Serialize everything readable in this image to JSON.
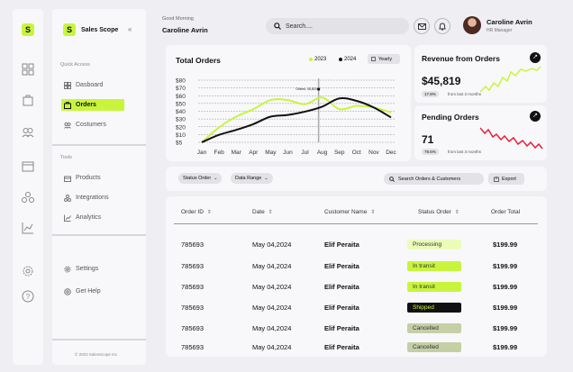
{
  "brand": {
    "logo_letter": "S",
    "name": "Sales Scope",
    "collapse_icon": "double-chevron-left-icon"
  },
  "nav": {
    "quick_access_title": "Quick Access",
    "quick_access": [
      {
        "label": "Dasboard",
        "icon": "dashboard-icon"
      },
      {
        "label": "Orders",
        "icon": "orders-icon",
        "active": true
      },
      {
        "label": "Costumers",
        "icon": "customers-icon"
      }
    ],
    "tools_title": "Tools",
    "tools": [
      {
        "label": "Products",
        "icon": "products-icon"
      },
      {
        "label": "Integrations",
        "icon": "integrations-icon"
      },
      {
        "label": "Analytics",
        "icon": "analytics-icon"
      }
    ],
    "bottom": [
      {
        "label": "Settings",
        "icon": "settings-icon"
      },
      {
        "label": "Get Help",
        "icon": "help-icon"
      }
    ],
    "copyright": "© 2023 SalesScope Inc"
  },
  "rail_icons": [
    "dashboard-icon",
    "bag-icon",
    "users-icon",
    "image-icon",
    "integration-icon",
    "chart-icon",
    "settings-icon",
    "help-icon"
  ],
  "header": {
    "greeting": "Good Morning",
    "user_name": "Caroline Avrin",
    "search_placeholder": "Search....",
    "mail_icon": "mail-icon",
    "bell_icon": "bell-icon",
    "profile_name": "Caroline Avrin",
    "profile_role": "HR Manager"
  },
  "total_orders": {
    "title": "Total Orders",
    "period": "Yearly",
    "tooltip": "Orders: 45,819"
  },
  "chart_data": {
    "type": "line",
    "title": "Total Orders",
    "categories": [
      "Jan",
      "Feb",
      "Mar",
      "Apr",
      "May",
      "Jun",
      "Jul",
      "Aug",
      "Sep",
      "Oct",
      "Nov",
      "Dec"
    ],
    "yticks": [
      "$80",
      "$70",
      "$60",
      "$50",
      "$40",
      "$30",
      "$20",
      "$10",
      "$5"
    ],
    "ylim": [
      5,
      80
    ],
    "grid": true,
    "legend_position": "top-right",
    "colors": {
      "2023": "#c8f53c",
      "2024": "#111111"
    },
    "series": [
      {
        "name": "2023",
        "values": [
          5,
          23,
          36,
          45,
          56,
          56,
          51,
          59,
          45,
          49,
          47,
          41
        ]
      },
      {
        "name": "2024",
        "values": [
          5,
          14,
          20,
          27,
          36,
          38,
          42,
          48,
          58,
          55,
          47,
          35
        ]
      }
    ]
  },
  "revenue": {
    "title": "Revenue from Orders",
    "value": "$45,819",
    "change": "17.8%",
    "note": "from last 3 months",
    "trend": "up",
    "color": "#c8f53c"
  },
  "pending": {
    "title": "Pending Orders",
    "value": "71",
    "change": "78.6%",
    "note": "from last 3 months",
    "trend": "down",
    "color": "#e5223a"
  },
  "filters": {
    "status_order": "Status Order",
    "data_range": "Data Range",
    "search_placeholder": "Search Orders & Customers",
    "export": "Export"
  },
  "table": {
    "headers": [
      "Order ID",
      "Date",
      "Customer Name",
      "Status Order",
      "Order Total"
    ],
    "rows": [
      {
        "id": "785693",
        "date": "May 04,2024",
        "customer": "Elif Peraita",
        "status": "Processing",
        "total": "$199.99"
      },
      {
        "id": "785693",
        "date": "May 04,2024",
        "customer": "Elif Peraita",
        "status": "In transit",
        "total": "$199.99"
      },
      {
        "id": "785693",
        "date": "May 04,2024",
        "customer": "Elif Peraita",
        "status": "In transit",
        "total": "$199.99"
      },
      {
        "id": "785693",
        "date": "May 04,2024",
        "customer": "Elif Peraita",
        "status": "Shipped",
        "total": "$199.99"
      },
      {
        "id": "785693",
        "date": "May 04,2024",
        "customer": "Elif Peraita",
        "status": "Cancelled",
        "total": "$199.99"
      },
      {
        "id": "785693",
        "date": "May 04,2024",
        "customer": "Elif Peraita",
        "status": "Cancelled",
        "total": "$199.99"
      }
    ],
    "status_colors": {
      "Processing": {
        "bg": "#ecfcb8",
        "fg": "#333333"
      },
      "In transit": {
        "bg": "#c8f53c",
        "fg": "#333333"
      },
      "Shipped": {
        "bg": "#111111",
        "fg": "#c8f53c"
      },
      "Cancelled": {
        "bg": "#c5cfa6",
        "fg": "#333333"
      }
    }
  }
}
